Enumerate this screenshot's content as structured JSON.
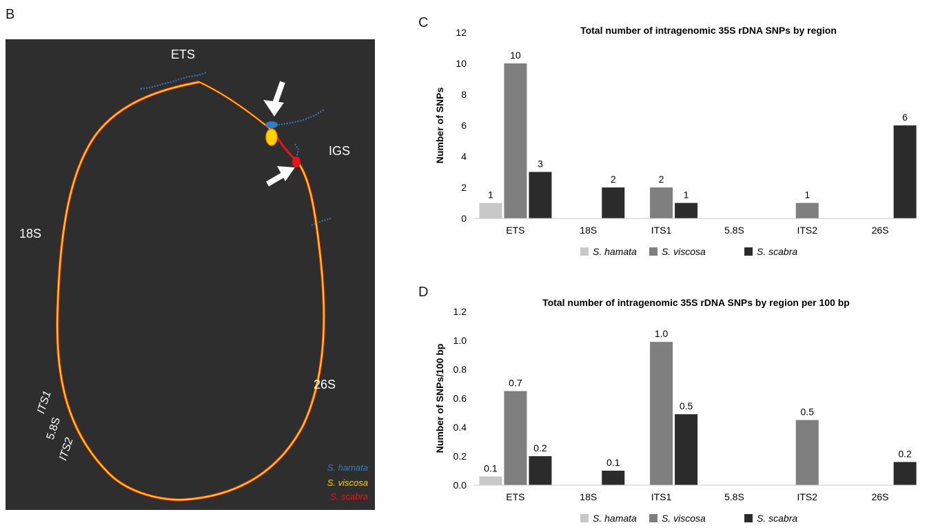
{
  "panel_labels": {
    "b": "B",
    "c": "C",
    "d": "D"
  },
  "graph_panel": {
    "background": "#2e2e2e",
    "region_labels": {
      "ets": "ETS",
      "igs": "IGS",
      "s18": "18S",
      "s26": "26S",
      "its1": "ITS1",
      "s58": "5.8S",
      "its2": "ITS2"
    },
    "legend": [
      {
        "name": "S. hamata",
        "color": "#2f7fc1"
      },
      {
        "name": "S. viscosa",
        "color": "#ffd400"
      },
      {
        "name": "S. scabra",
        "color": "#e8141b"
      }
    ]
  },
  "chart_data": [
    {
      "type": "bar",
      "title": "Total number of intragenomic 35S rDNA SNPs by region",
      "xlabel": "",
      "ylabel": "Number of SNPs",
      "ylim": [
        0,
        12
      ],
      "yticks": [
        "0",
        "2",
        "4",
        "6",
        "8",
        "10",
        "12"
      ],
      "categories": [
        "ETS",
        "18S",
        "ITS1",
        "5.8S",
        "ITS2",
        "26S"
      ],
      "series": [
        {
          "name": "S. hamata",
          "color": "#c8c8c8",
          "values": [
            1,
            0,
            0,
            0,
            0,
            0
          ],
          "labels": [
            "1",
            "",
            "",
            "",
            "",
            ""
          ]
        },
        {
          "name": "S. viscosa",
          "color": "#7f7f7f",
          "values": [
            10,
            0,
            2,
            0,
            1,
            0
          ],
          "labels": [
            "10",
            "",
            "2",
            "",
            "1",
            ""
          ]
        },
        {
          "name": "S. scabra",
          "color": "#2b2b2b",
          "values": [
            3,
            2,
            1,
            0,
            0,
            6
          ],
          "labels": [
            "3",
            "2",
            "1",
            "",
            "",
            "6"
          ]
        }
      ],
      "grid": false,
      "legend_position": "bottom"
    },
    {
      "type": "bar",
      "title": "Total number of intragenomic 35S rDNA SNPs by region per 100 bp",
      "xlabel": "",
      "ylabel": "Number of SNPs/100 bp",
      "ylim": [
        0,
        1.2
      ],
      "yticks": [
        "0.0",
        "0.2",
        "0.4",
        "0.6",
        "0.8",
        "1.0",
        "1.2"
      ],
      "categories": [
        "ETS",
        "18S",
        "ITS1",
        "5.8S",
        "ITS2",
        "26S"
      ],
      "series": [
        {
          "name": "S. hamata",
          "color": "#c8c8c8",
          "values": [
            0.06,
            0,
            0,
            0,
            0,
            0
          ],
          "labels": [
            "0.1",
            "",
            "",
            "",
            "",
            ""
          ]
        },
        {
          "name": "S. viscosa",
          "color": "#7f7f7f",
          "values": [
            0.65,
            0,
            0.99,
            0,
            0.45,
            0
          ],
          "labels": [
            "0.7",
            "",
            "1.0",
            "",
            "0.5",
            ""
          ]
        },
        {
          "name": "S. scabra",
          "color": "#2b2b2b",
          "values": [
            0.2,
            0.1,
            0.49,
            0,
            0,
            0.16
          ],
          "labels": [
            "0.2",
            "0.1",
            "0.5",
            "",
            "",
            "0.2"
          ]
        }
      ],
      "grid": false,
      "legend_position": "bottom"
    }
  ]
}
